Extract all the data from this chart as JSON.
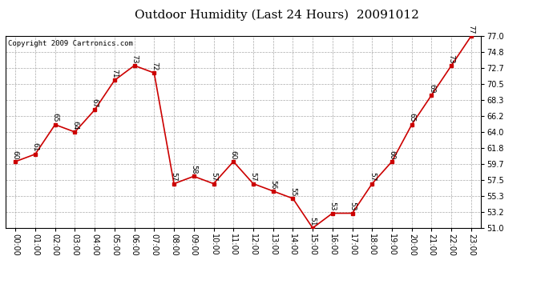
{
  "title": "Outdoor Humidity (Last 24 Hours)  20091012",
  "copyright": "Copyright 2009 Cartronics.com",
  "hours": [
    "00:00",
    "01:00",
    "02:00",
    "03:00",
    "04:00",
    "05:00",
    "06:00",
    "07:00",
    "08:00",
    "09:00",
    "10:00",
    "11:00",
    "12:00",
    "13:00",
    "14:00",
    "15:00",
    "16:00",
    "17:00",
    "18:00",
    "19:00",
    "20:00",
    "21:00",
    "22:00",
    "23:00"
  ],
  "values": [
    60,
    61,
    65,
    64,
    67,
    71,
    73,
    72,
    57,
    58,
    57,
    60,
    57,
    56,
    55,
    51,
    53,
    53,
    57,
    60,
    65,
    69,
    73,
    77
  ],
  "ylim": [
    51.0,
    77.0
  ],
  "yticks": [
    51.0,
    53.2,
    55.3,
    57.5,
    59.7,
    61.8,
    64.0,
    66.2,
    68.3,
    70.5,
    72.7,
    74.8,
    77.0
  ],
  "line_color": "#cc0000",
  "marker_color": "#cc0000",
  "bg_color": "#ffffff",
  "plot_bg_color": "#ffffff",
  "grid_color": "#aaaaaa",
  "title_fontsize": 11,
  "label_fontsize": 6.5,
  "tick_fontsize": 7,
  "copyright_fontsize": 6.5
}
